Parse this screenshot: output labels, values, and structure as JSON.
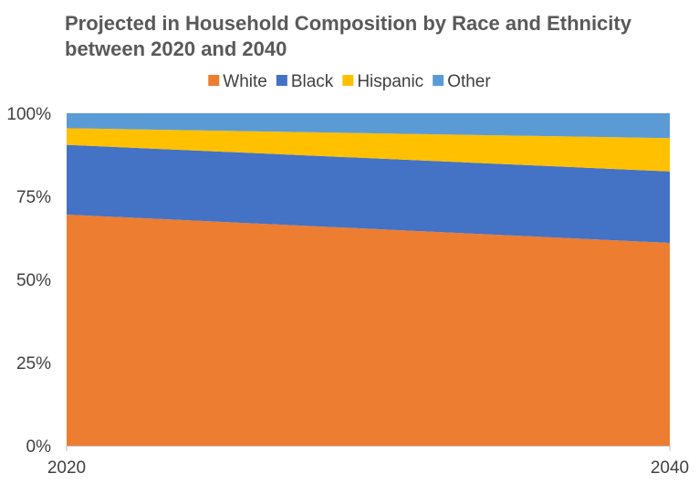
{
  "chart_data": {
    "type": "area",
    "stacked": true,
    "percent_stacked": true,
    "title": "Projected in Household Composition by Race and Ethnicity between 2020 and 2040",
    "x": [
      "2020",
      "2040"
    ],
    "series": [
      {
        "name": "White",
        "values": [
          69.5,
          61
        ],
        "color": "#ED7D31"
      },
      {
        "name": "Black",
        "values": [
          21,
          21.5
        ],
        "color": "#4472C4"
      },
      {
        "name": "Hispanic",
        "values": [
          5,
          10
        ],
        "color": "#FFC000"
      },
      {
        "name": "Other",
        "values": [
          4.5,
          7.5
        ],
        "color": "#5B9BD5"
      }
    ],
    "yticks": [
      "0%",
      "25%",
      "50%",
      "75%",
      "100%"
    ],
    "ylim": [
      0,
      100
    ],
    "legend_position": "top",
    "grid": false
  }
}
